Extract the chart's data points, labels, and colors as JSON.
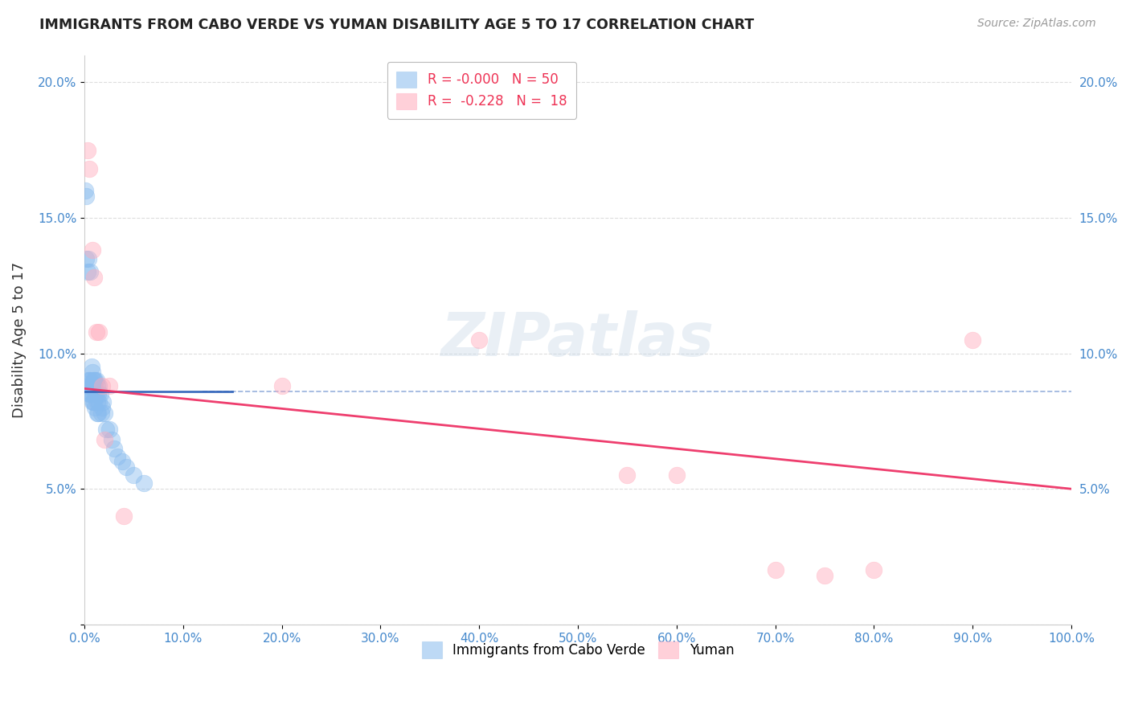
{
  "title": "IMMIGRANTS FROM CABO VERDE VS YUMAN DISABILITY AGE 5 TO 17 CORRELATION CHART",
  "source": "Source: ZipAtlas.com",
  "ylabel": "Disability Age 5 to 17",
  "xlim": [
    0,
    1.0
  ],
  "ylim": [
    0,
    0.21
  ],
  "xticks": [
    0.0,
    0.1,
    0.2,
    0.3,
    0.4,
    0.5,
    0.6,
    0.7,
    0.8,
    0.9,
    1.0
  ],
  "xticklabels": [
    "0.0%",
    "10.0%",
    "20.0%",
    "30.0%",
    "40.0%",
    "50.0%",
    "60.0%",
    "70.0%",
    "80.0%",
    "90.0%",
    "100.0%"
  ],
  "yticks": [
    0.0,
    0.05,
    0.1,
    0.15,
    0.2
  ],
  "yticklabels": [
    "",
    "5.0%",
    "10.0%",
    "15.0%",
    "20.0%"
  ],
  "cabo_verde_color": "#88BBEE",
  "yuman_color": "#FFAABB",
  "cabo_verde_line_color": "#3366BB",
  "yuman_line_color": "#EE3366",
  "cabo_verde_x": [
    0.001,
    0.002,
    0.002,
    0.003,
    0.003,
    0.004,
    0.004,
    0.005,
    0.005,
    0.006,
    0.006,
    0.006,
    0.007,
    0.007,
    0.007,
    0.008,
    0.008,
    0.008,
    0.009,
    0.009,
    0.009,
    0.01,
    0.01,
    0.01,
    0.011,
    0.011,
    0.011,
    0.012,
    0.012,
    0.013,
    0.013,
    0.013,
    0.014,
    0.014,
    0.015,
    0.015,
    0.016,
    0.017,
    0.018,
    0.019,
    0.02,
    0.022,
    0.025,
    0.028,
    0.03,
    0.033,
    0.038,
    0.042,
    0.05,
    0.06
  ],
  "cabo_verde_y": [
    0.16,
    0.158,
    0.135,
    0.13,
    0.09,
    0.135,
    0.088,
    0.09,
    0.085,
    0.13,
    0.09,
    0.085,
    0.095,
    0.088,
    0.085,
    0.093,
    0.088,
    0.082,
    0.09,
    0.085,
    0.082,
    0.09,
    0.088,
    0.082,
    0.09,
    0.085,
    0.08,
    0.09,
    0.085,
    0.088,
    0.082,
    0.078,
    0.085,
    0.078,
    0.088,
    0.082,
    0.085,
    0.078,
    0.08,
    0.082,
    0.078,
    0.072,
    0.072,
    0.068,
    0.065,
    0.062,
    0.06,
    0.058,
    0.055,
    0.052
  ],
  "cabo_verde_line_x": [
    0.0,
    0.15
  ],
  "cabo_verde_line_y_start": 0.086,
  "cabo_verde_line_y_end": 0.086,
  "yuman_x": [
    0.003,
    0.005,
    0.008,
    0.01,
    0.012,
    0.015,
    0.018,
    0.02,
    0.025,
    0.04,
    0.2,
    0.4,
    0.55,
    0.6,
    0.7,
    0.75,
    0.8,
    0.9
  ],
  "yuman_y": [
    0.175,
    0.168,
    0.138,
    0.128,
    0.108,
    0.108,
    0.088,
    0.068,
    0.088,
    0.04,
    0.088,
    0.105,
    0.055,
    0.055,
    0.02,
    0.018,
    0.02,
    0.105
  ],
  "yuman_line_x": [
    0.0,
    1.0
  ],
  "yuman_line_y_start": 0.087,
  "yuman_line_y_end": 0.05,
  "watermark": "ZIPatlas",
  "background_color": "#FFFFFF",
  "grid_color": "#DDDDDD",
  "cabo_verde_label": "Immigrants from Cabo Verde",
  "yuman_label": "Yuman",
  "legend_r1": "R = -0.000",
  "legend_n1": "N = 50",
  "legend_r2": "R =  -0.228",
  "legend_n2": "N =  18"
}
